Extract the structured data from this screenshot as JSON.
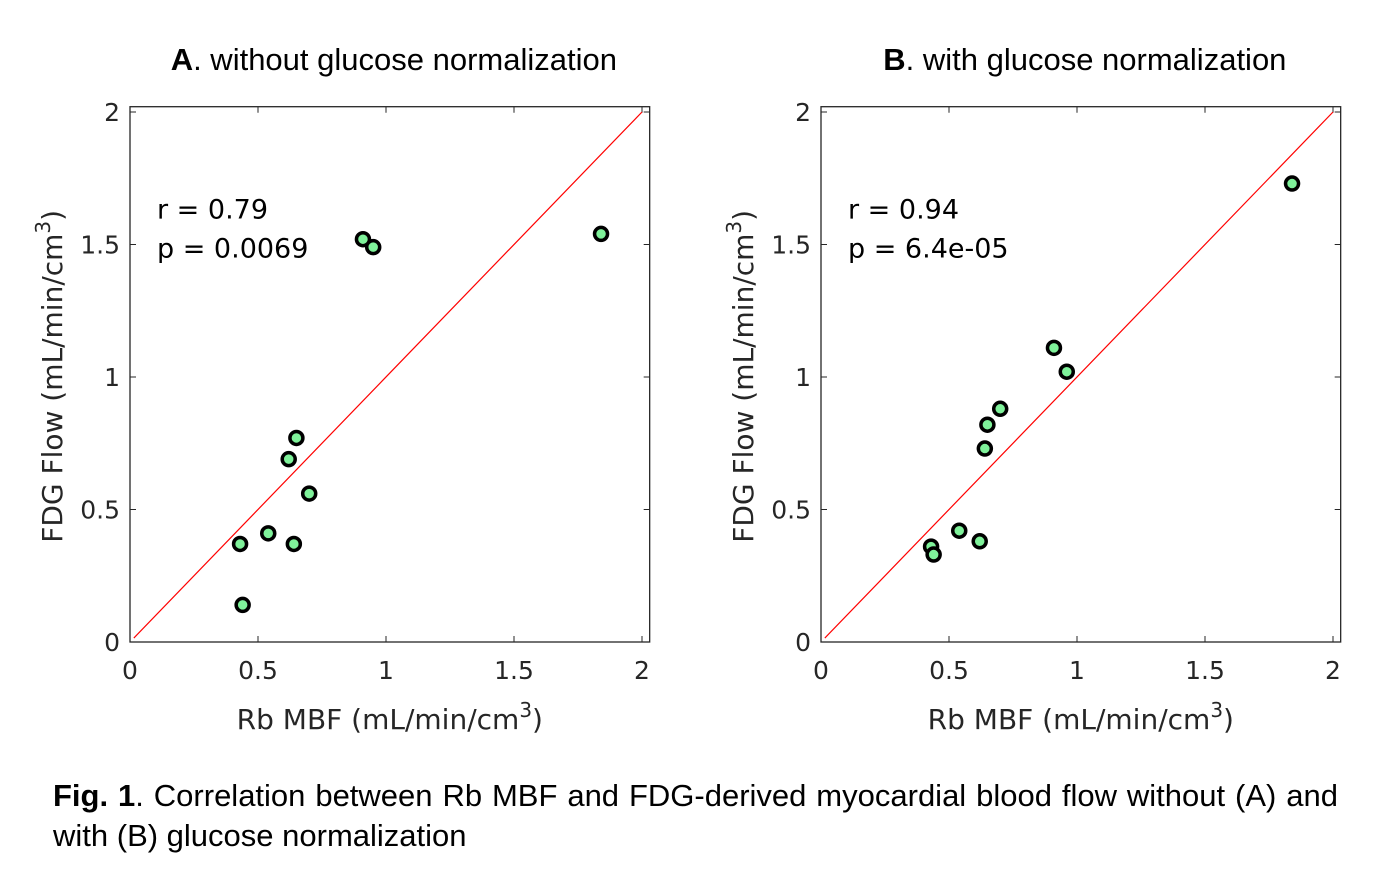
{
  "chart_data": [
    {
      "type": "scatter",
      "panel_letter": "A",
      "title": ". without glucose normalization",
      "xlabel": "Rb MBF (mL/min/cm",
      "ylabel": "FDG Flow (mL/min/cm",
      "label_superscript": "3",
      "label_close": ")",
      "xlim": [
        0,
        2.03
      ],
      "ylim": [
        0,
        2.02
      ],
      "xticks": [
        0,
        0.5,
        1,
        1.5,
        2
      ],
      "yticks": [
        0,
        0.5,
        1,
        1.5,
        2
      ],
      "tick_labels": [
        "0",
        "0.5",
        "1",
        "1.5",
        "2"
      ],
      "grid": false,
      "annotations": [
        "r = 0.79",
        "p = 0.0069"
      ],
      "reference_line": {
        "type": "identity",
        "from": 0,
        "to": 2,
        "color": "#ff0000"
      },
      "marker": {
        "fill": "#7ff29a",
        "edge": "#000000"
      },
      "x": [
        0.43,
        0.44,
        0.54,
        0.62,
        0.64,
        0.65,
        0.7,
        0.91,
        0.95,
        1.84
      ],
      "y": [
        0.37,
        0.14,
        0.41,
        0.69,
        0.37,
        0.77,
        0.56,
        1.52,
        1.49,
        1.54
      ]
    },
    {
      "type": "scatter",
      "panel_letter": "B",
      "title": ". with glucose normalization",
      "xlabel": "Rb MBF (mL/min/cm",
      "ylabel": "FDG Flow (mL/min/cm",
      "label_superscript": "3",
      "label_close": ")",
      "xlim": [
        0,
        2.03
      ],
      "ylim": [
        0,
        2.02
      ],
      "xticks": [
        0,
        0.5,
        1,
        1.5,
        2
      ],
      "yticks": [
        0,
        0.5,
        1,
        1.5,
        2
      ],
      "tick_labels": [
        "0",
        "0.5",
        "1",
        "1.5",
        "2"
      ],
      "grid": false,
      "annotations": [
        "r = 0.94",
        "p = 6.4e-05"
      ],
      "reference_line": {
        "type": "identity",
        "from": 0,
        "to": 2,
        "color": "#ff0000"
      },
      "marker": {
        "fill": "#7ff29a",
        "edge": "#000000"
      },
      "x": [
        0.43,
        0.44,
        0.54,
        0.62,
        0.64,
        0.65,
        0.7,
        0.91,
        0.96,
        1.84
      ],
      "y": [
        0.36,
        0.33,
        0.42,
        0.38,
        0.73,
        0.82,
        0.88,
        1.11,
        1.02,
        1.73
      ]
    }
  ],
  "caption": {
    "label": "Fig. 1",
    "text": ". Correlation between Rb MBF and FDG-derived myocardial blood flow without (A) and with (B) glucose normalization"
  }
}
